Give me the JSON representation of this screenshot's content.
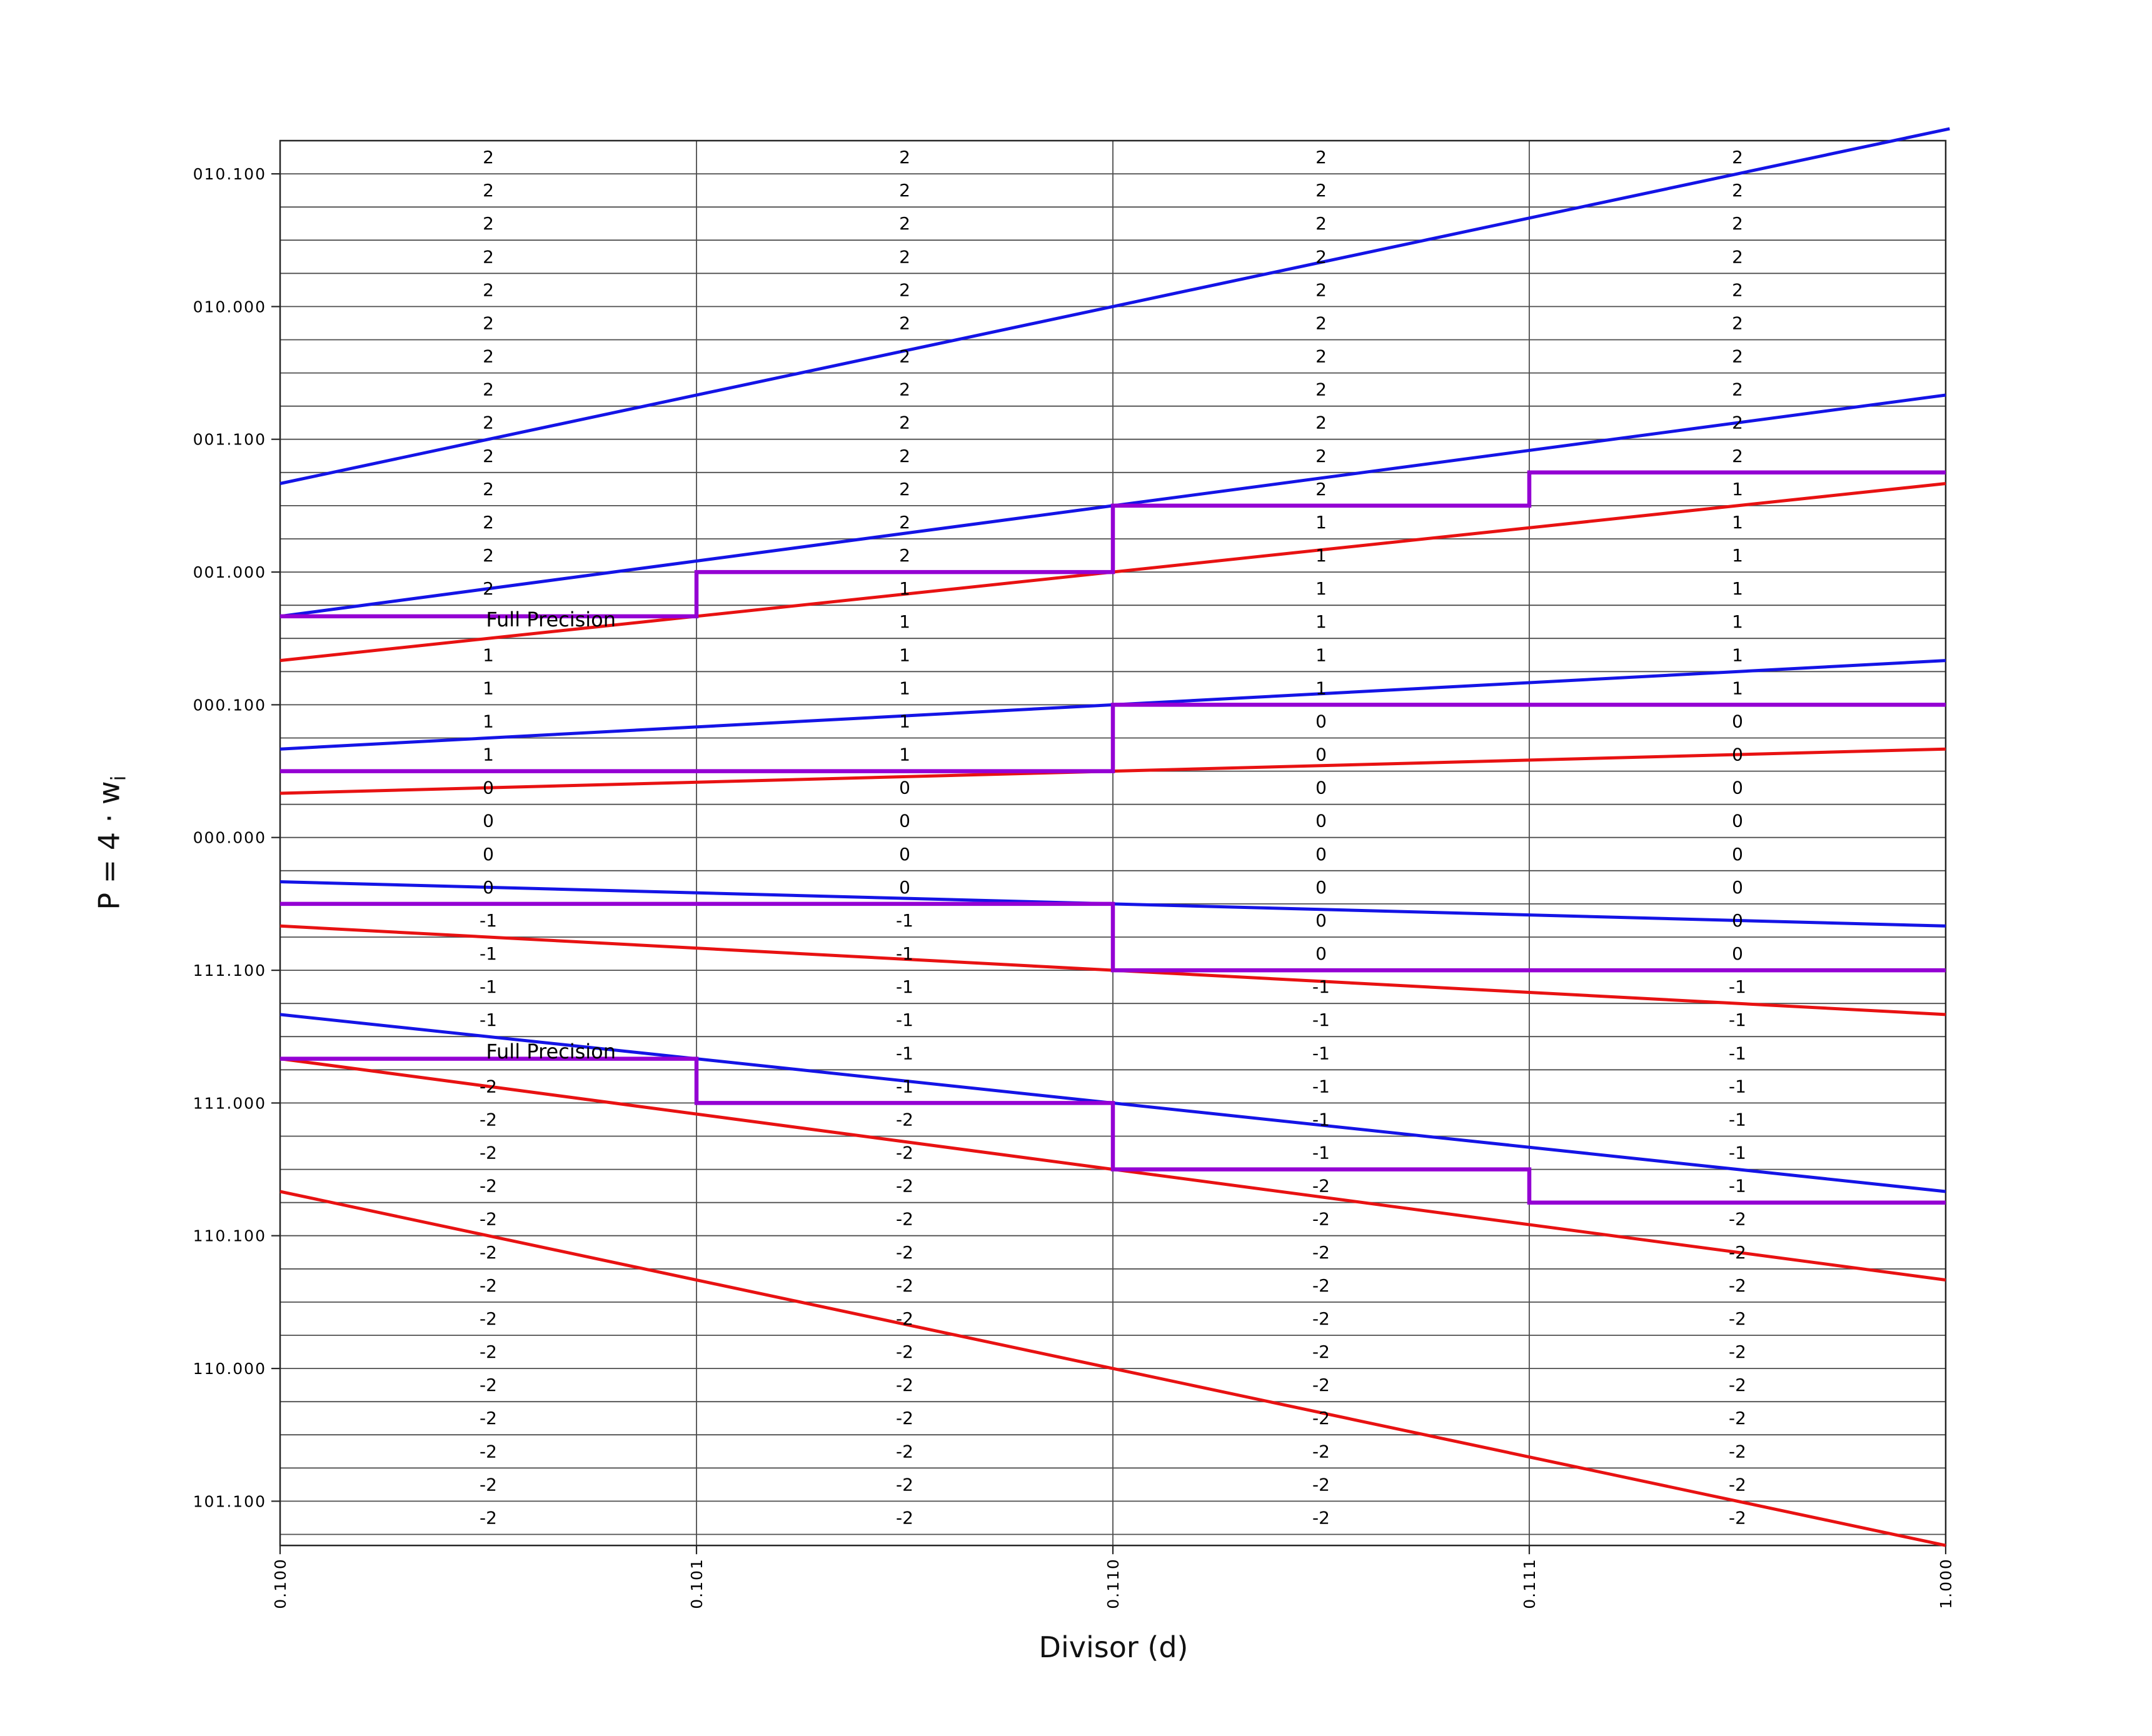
{
  "chart_data": {
    "type": "line",
    "subtype": "srt-radix4-pd-diagram",
    "title": "",
    "xlabel": "Divisor (d)",
    "ylabel": "P = 4 ⋅ w",
    "ylabel_sub": "i",
    "xlim": [
      0.5,
      1.0
    ],
    "ylim": [
      -2.6667,
      2.625
    ],
    "grid": {
      "x_step": 0.125,
      "y_step": 0.125,
      "on": true
    },
    "x_ticks": [
      {
        "label": "0.100",
        "d": 0.5
      },
      {
        "label": "0.101",
        "d": 0.625
      },
      {
        "label": "0.110",
        "d": 0.75
      },
      {
        "label": "0.111",
        "d": 0.875
      },
      {
        "label": "1.000",
        "d": 1.0
      }
    ],
    "y_ticks": [
      {
        "label": "010.100",
        "P": 2.5
      },
      {
        "label": "010.000",
        "P": 2.0
      },
      {
        "label": "001.100",
        "P": 1.5
      },
      {
        "label": "001.000",
        "P": 1.0
      },
      {
        "label": "000.100",
        "P": 0.5
      },
      {
        "label": "000.000",
        "P": 0.0
      },
      {
        "label": "111.100",
        "P": -0.5
      },
      {
        "label": "111.000",
        "P": -1.0
      },
      {
        "label": "110.100",
        "P": -1.5
      },
      {
        "label": "110.000",
        "P": -2.0
      },
      {
        "label": "101.100",
        "P": -2.5
      }
    ],
    "boundary_lines": [
      {
        "name": "U2",
        "color_key": "upper",
        "d": [
          0.5,
          1.0012
        ],
        "P": [
          1.333333,
          2.669867
        ]
      },
      {
        "name": "U1",
        "color_key": "upper",
        "d": [
          0.5,
          1.0
        ],
        "P": [
          0.833333,
          1.666667
        ]
      },
      {
        "name": "U0",
        "color_key": "upper",
        "d": [
          0.5,
          1.0
        ],
        "P": [
          0.333333,
          0.666667
        ]
      },
      {
        "name": "U-1",
        "color_key": "upper",
        "d": [
          0.5,
          1.0
        ],
        "P": [
          -0.166667,
          -0.333333
        ]
      },
      {
        "name": "U-2",
        "color_key": "upper",
        "d": [
          0.5,
          1.0
        ],
        "P": [
          -0.666667,
          -1.333333
        ]
      },
      {
        "name": "L2",
        "color_key": "lower",
        "d": [
          0.5,
          1.0
        ],
        "P": [
          0.666667,
          1.333333
        ]
      },
      {
        "name": "L1",
        "color_key": "lower",
        "d": [
          0.5,
          1.0
        ],
        "P": [
          0.166667,
          0.333333
        ]
      },
      {
        "name": "L0",
        "color_key": "lower",
        "d": [
          0.5,
          1.0
        ],
        "P": [
          -0.333333,
          -0.666667
        ]
      },
      {
        "name": "L-1",
        "color_key": "lower",
        "d": [
          0.5,
          1.0
        ],
        "P": [
          -0.833333,
          -1.666667
        ]
      },
      {
        "name": "L-2",
        "color_key": "lower",
        "d": [
          0.5,
          1.0
        ],
        "P": [
          -1.333333,
          -2.666667
        ]
      }
    ],
    "staircase_column_edges": [
      0.5,
      0.625,
      0.75,
      0.875,
      1.0
    ],
    "staircases": [
      {
        "name": "threshold-2-vs-1",
        "levels": [
          0.833333,
          1.0,
          1.25,
          1.375
        ]
      },
      {
        "name": "threshold-1-vs-0",
        "levels": [
          0.25,
          0.25,
          0.5,
          0.5
        ]
      },
      {
        "name": "threshold-0-vs-m1",
        "levels": [
          -0.25,
          -0.25,
          -0.5,
          -0.5
        ]
      },
      {
        "name": "threshold-m1-vs-m2",
        "levels": [
          -0.833333,
          -1.0,
          -1.25,
          -1.375
        ]
      }
    ],
    "cells": {
      "row_top_P": 2.625,
      "row_step": 0.125,
      "n_rows": 42,
      "columns": [
        {
          "center_d": 0.5625,
          "runs": [
            [
              "2",
              14
            ],
            [
              "",
              1
            ],
            [
              "1",
              4
            ],
            [
              "0",
              4
            ],
            [
              "-1",
              4
            ],
            [
              "",
              1
            ],
            [
              "-2",
              14
            ]
          ]
        },
        {
          "center_d": 0.6875,
          "runs": [
            [
              "2",
              13
            ],
            [
              "1",
              6
            ],
            [
              "0",
              4
            ],
            [
              "-1",
              6
            ],
            [
              "-2",
              13
            ]
          ]
        },
        {
          "center_d": 0.8125,
          "runs": [
            [
              "2",
              11
            ],
            [
              "1",
              6
            ],
            [
              "0",
              8
            ],
            [
              "-1",
              6
            ],
            [
              "-2",
              11
            ]
          ]
        },
        {
          "center_d": 0.9375,
          "runs": [
            [
              "2",
              10
            ],
            [
              "1",
              7
            ],
            [
              "0",
              8
            ],
            [
              "-1",
              7
            ],
            [
              "-2",
              10
            ]
          ]
        }
      ]
    },
    "annotations": [
      {
        "text": "Full Precision",
        "d": 0.5813,
        "P": 0.821
      },
      {
        "text": "Full Precision",
        "d": 0.5813,
        "P": -0.806
      }
    ],
    "colors": {
      "upper": "#1414E6",
      "lower": "#E81212",
      "staircase": "#9400D3",
      "grid": "#4d4d4d",
      "spine": "#262626",
      "text": "#000000"
    }
  }
}
